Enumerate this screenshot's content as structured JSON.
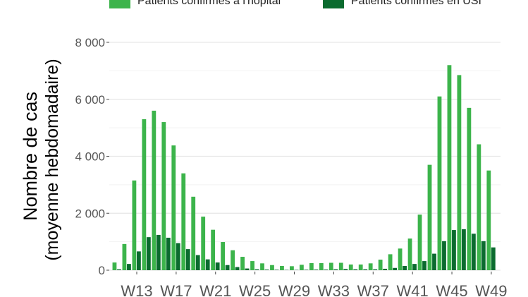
{
  "chart_data": {
    "type": "bar",
    "title": "",
    "xlabel": "",
    "ylabel": [
      "Nombre de cas",
      "(moyenne hebdomadaire)"
    ],
    "ylim": [
      0,
      8000
    ],
    "yticks": [
      0,
      2000,
      4000,
      6000,
      8000
    ],
    "ytick_labels": [
      "0",
      "2 000",
      "4 000",
      "6 000",
      "8 000"
    ],
    "grid": true,
    "legend_position": "top",
    "x": [
      11,
      12,
      13,
      14,
      15,
      16,
      17,
      18,
      19,
      20,
      21,
      22,
      23,
      24,
      25,
      26,
      27,
      28,
      29,
      30,
      31,
      32,
      33,
      34,
      35,
      36,
      37,
      38,
      39,
      40,
      41,
      42,
      43,
      44,
      45,
      46,
      47,
      48,
      49
    ],
    "xticks": [
      13,
      17,
      21,
      25,
      29,
      33,
      37,
      41,
      45,
      49
    ],
    "xtick_labels": [
      "W13",
      "W17",
      "W21",
      "W25",
      "W29",
      "W33",
      "W37",
      "W41",
      "W45",
      "W49"
    ],
    "series": [
      {
        "name": "Patients confirmés à l'hôpital",
        "color": "#3cb44b",
        "values": [
          270,
          920,
          3150,
          5300,
          5600,
          5200,
          4380,
          3400,
          2580,
          1880,
          1420,
          990,
          700,
          470,
          320,
          240,
          180,
          150,
          140,
          190,
          250,
          250,
          260,
          260,
          200,
          200,
          240,
          370,
          560,
          760,
          1110,
          1950,
          3700,
          6100,
          7200,
          6850,
          5700,
          4420,
          3500
        ]
      },
      {
        "name": "Patients confirmés en USI",
        "color": "#0b6b2f",
        "values": [
          30,
          220,
          660,
          1160,
          1240,
          1140,
          950,
          740,
          530,
          380,
          270,
          180,
          110,
          60,
          30,
          20,
          15,
          10,
          10,
          15,
          20,
          20,
          30,
          40,
          30,
          30,
          30,
          50,
          80,
          150,
          220,
          320,
          580,
          1020,
          1410,
          1440,
          1280,
          1020,
          800
        ]
      }
    ]
  }
}
